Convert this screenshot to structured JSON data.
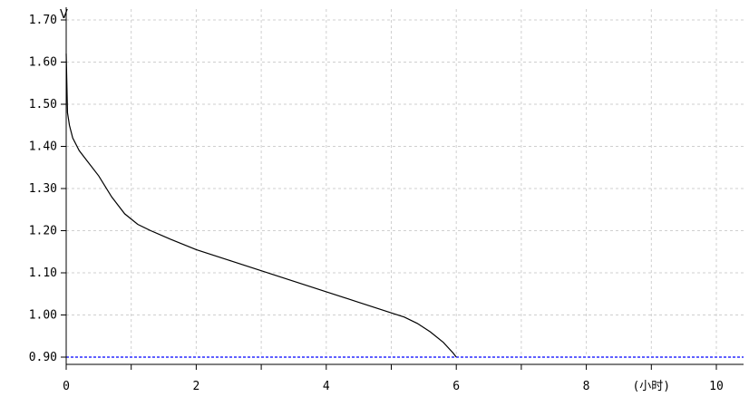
{
  "chart_data": {
    "type": "line",
    "title": "",
    "xlabel": "(小时)",
    "ylabel": "V",
    "xlim": [
      0,
      10.6
    ],
    "ylim": [
      0.9,
      1.7
    ],
    "grid": true,
    "x_ticks": [
      0,
      1,
      2,
      3,
      4,
      5,
      6,
      7,
      8,
      9,
      10
    ],
    "x_tick_labels": [
      "0",
      "",
      "2",
      "",
      "4",
      "",
      "6",
      "",
      "8",
      "(小时)",
      "10"
    ],
    "y_ticks": [
      0.9,
      1.0,
      1.1,
      1.2,
      1.3,
      1.4,
      1.5,
      1.6,
      1.7
    ],
    "y_tick_labels": [
      "0.90",
      "1.00",
      "1.10",
      "1.20",
      "1.30",
      "1.40",
      "1.50",
      "1.60",
      "1.70"
    ],
    "colors": {
      "curve": "#000000",
      "cutoff": "#0000ff",
      "grid": "#cfcfcf",
      "axis": "#000000"
    },
    "series": [
      {
        "x": [
          0,
          0.02,
          0.05,
          0.1,
          0.2,
          0.3,
          0.5,
          0.7,
          0.9,
          1.1,
          1.3,
          1.6,
          2.0,
          2.5,
          3.0,
          3.5,
          4.0,
          4.5,
          5.0,
          5.2,
          5.4,
          5.6,
          5.8,
          5.95,
          6.0
        ],
        "values": [
          1.62,
          1.48,
          1.45,
          1.42,
          1.39,
          1.37,
          1.33,
          1.28,
          1.24,
          1.215,
          1.2,
          1.18,
          1.155,
          1.13,
          1.105,
          1.08,
          1.055,
          1.03,
          1.005,
          0.995,
          0.98,
          0.96,
          0.935,
          0.91,
          0.9
        ]
      }
    ],
    "reference_lines": [
      {
        "axis": "y",
        "value": 0.9,
        "style": "dashed"
      }
    ]
  }
}
